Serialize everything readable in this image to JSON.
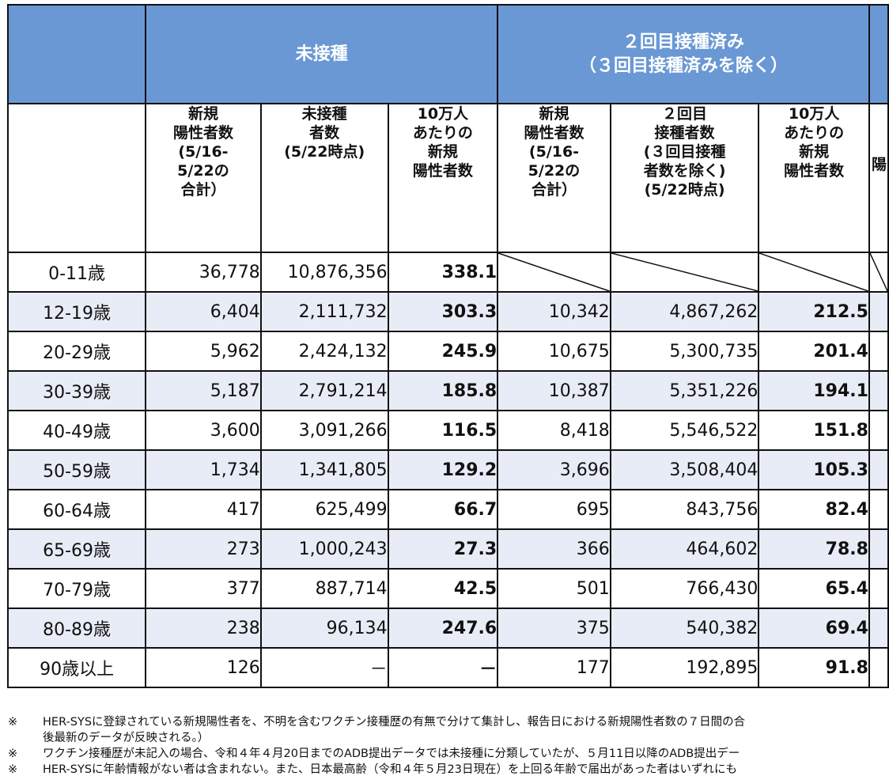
{
  "headers": {
    "unvaccinated": "未接種",
    "second_dose_line1": "２回目接種済み",
    "second_dose_line2": "（３回目接種済みを除く）"
  },
  "subheaders": {
    "u_new": "新規\n陽性者数\n(5/16-\n5/22の\n合計）",
    "u_pop": "未接種\n者数\n(5/22時点)",
    "u_rate": "10万人\nあたりの\n新規\n陽性者数",
    "s_new": "新規\n陽性者数\n(5/16-\n5/22の\n合計）",
    "s_pop": "２回目\n接種者数\n(３回目接種\n者数を除く)\n(5/22時点)",
    "s_rate": "10万人\nあたりの\n新規\n陽性者数",
    "next_partial": "陽"
  },
  "rows": [
    {
      "age": "0-11歳",
      "u_new": "36,778",
      "u_pop": "10,876,356",
      "u_rate": "338.1",
      "s_new": "",
      "s_pop": "",
      "s_rate": ""
    },
    {
      "age": "12-19歳",
      "u_new": "6,404",
      "u_pop": "2,111,732",
      "u_rate": "303.3",
      "s_new": "10,342",
      "s_pop": "4,867,262",
      "s_rate": "212.5"
    },
    {
      "age": "20-29歳",
      "u_new": "5,962",
      "u_pop": "2,424,132",
      "u_rate": "245.9",
      "s_new": "10,675",
      "s_pop": "5,300,735",
      "s_rate": "201.4"
    },
    {
      "age": "30-39歳",
      "u_new": "5,187",
      "u_pop": "2,791,214",
      "u_rate": "185.8",
      "s_new": "10,387",
      "s_pop": "5,351,226",
      "s_rate": "194.1"
    },
    {
      "age": "40-49歳",
      "u_new": "3,600",
      "u_pop": "3,091,266",
      "u_rate": "116.5",
      "s_new": "8,418",
      "s_pop": "5,546,522",
      "s_rate": "151.8"
    },
    {
      "age": "50-59歳",
      "u_new": "1,734",
      "u_pop": "1,341,805",
      "u_rate": "129.2",
      "s_new": "3,696",
      "s_pop": "3,508,404",
      "s_rate": "105.3"
    },
    {
      "age": "60-64歳",
      "u_new": "417",
      "u_pop": "625,499",
      "u_rate": "66.7",
      "s_new": "695",
      "s_pop": "843,756",
      "s_rate": "82.4"
    },
    {
      "age": "65-69歳",
      "u_new": "273",
      "u_pop": "1,000,243",
      "u_rate": "27.3",
      "s_new": "366",
      "s_pop": "464,602",
      "s_rate": "78.8"
    },
    {
      "age": "70-79歳",
      "u_new": "377",
      "u_pop": "887,714",
      "u_rate": "42.5",
      "s_new": "501",
      "s_pop": "766,430",
      "s_rate": "65.4"
    },
    {
      "age": "80-89歳",
      "u_new": "238",
      "u_pop": "96,134",
      "u_rate": "247.6",
      "s_new": "375",
      "s_pop": "540,382",
      "s_rate": "69.4"
    },
    {
      "age": "90歳以上",
      "u_new": "126",
      "u_pop": "－",
      "u_rate": "－",
      "s_new": "177",
      "s_pop": "192,895",
      "s_rate": "91.8"
    }
  ],
  "notes": [
    {
      "mark": "※",
      "text": "HER-SYSに登録されている新規陽性者を、不明を含むワクチン接種歴の有無で分けて集計し、報告日における新規陽性者数の７日間の合"
    },
    {
      "mark": "",
      "text": "後最新のデータが反映される。）"
    },
    {
      "mark": "※",
      "text": "ワクチン接種歴が未記入の場合、令和４年４月20日までのADB提出データでは未接種に分類していたが、５月11日以降のADB提出デー"
    },
    {
      "mark": "※",
      "text": "HER-SYSに年齢情報がない者は含まれない。また、日本最高齢（令和４年５月23日現在）を上回る年齢で届出があった者はいずれにも"
    }
  ]
}
